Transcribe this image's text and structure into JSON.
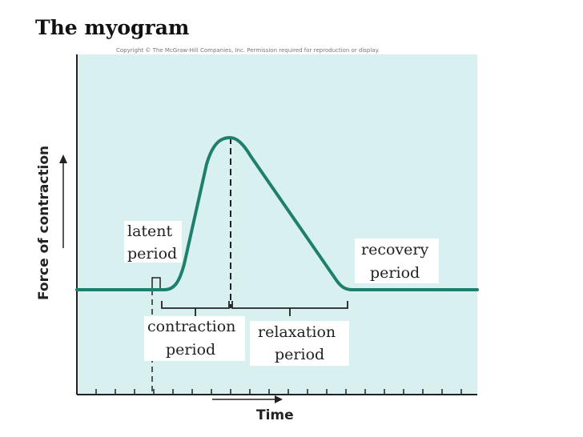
{
  "slide": {
    "title": "The myogram"
  },
  "figure": {
    "copyright_note": "Copyright © The McGraw-Hill Companies, Inc. Permission required for reproduction or display.",
    "y_axis_label": "Force of contraction",
    "x_axis_label": "Time",
    "labels": {
      "latent_line1": "latent",
      "latent_line2": "period",
      "contraction_line1": "contraction",
      "contraction_line2": "period",
      "relaxation_line1": "relaxation",
      "relaxation_line2": "period",
      "recovery_line1": "recovery",
      "recovery_line2": "period"
    },
    "colors": {
      "plot_background": "#d8f0ef",
      "curve": "#1e7f6c",
      "axis": "#222222"
    }
  }
}
